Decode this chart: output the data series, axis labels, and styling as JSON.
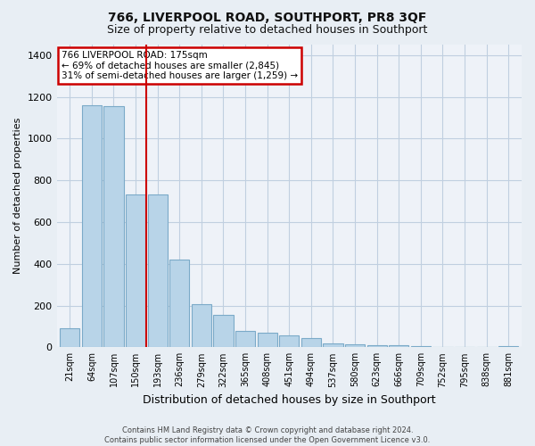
{
  "title": "766, LIVERPOOL ROAD, SOUTHPORT, PR8 3QF",
  "subtitle": "Size of property relative to detached houses in Southport",
  "xlabel": "Distribution of detached houses by size in Southport",
  "ylabel": "Number of detached properties",
  "categories": [
    "21sqm",
    "64sqm",
    "107sqm",
    "150sqm",
    "193sqm",
    "236sqm",
    "279sqm",
    "322sqm",
    "365sqm",
    "408sqm",
    "451sqm",
    "494sqm",
    "537sqm",
    "580sqm",
    "623sqm",
    "666sqm",
    "709sqm",
    "752sqm",
    "795sqm",
    "838sqm",
    "881sqm"
  ],
  "values": [
    90,
    1160,
    1155,
    730,
    730,
    420,
    205,
    155,
    80,
    70,
    55,
    45,
    20,
    15,
    10,
    10,
    5,
    0,
    0,
    0,
    5
  ],
  "bar_color": "#b8d4e8",
  "bar_edge_color": "#7baac8",
  "vline_x": 3.5,
  "vline_color": "#cc0000",
  "annotation_text": "766 LIVERPOOL ROAD: 175sqm\n← 69% of detached houses are smaller (2,845)\n31% of semi-detached houses are larger (1,259) →",
  "annotation_box_color": "#ffffff",
  "annotation_box_edge_color": "#cc0000",
  "ylim": [
    0,
    1450
  ],
  "yticks": [
    0,
    200,
    400,
    600,
    800,
    1000,
    1200,
    1400
  ],
  "footer": "Contains HM Land Registry data © Crown copyright and database right 2024.\nContains public sector information licensed under the Open Government Licence v3.0.",
  "bg_color": "#e8eef4",
  "plot_bg_color": "#eef2f8",
  "grid_color": "#c0cfe0",
  "title_fontsize": 10,
  "subtitle_fontsize": 9
}
